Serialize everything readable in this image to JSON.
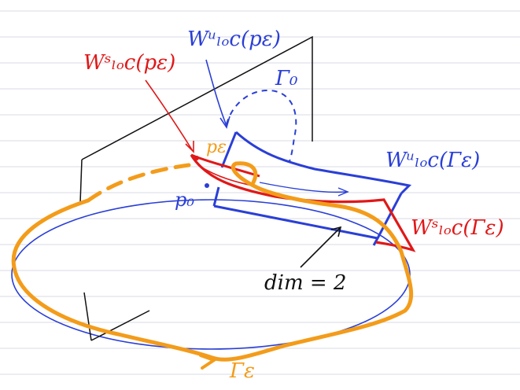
{
  "colors": {
    "paper": "#ffffff",
    "rule_line": "#d9dbe4",
    "blue": "#2a3fd6",
    "red": "#e01818",
    "orange": "#f39c1a",
    "ink": "#111111"
  },
  "labels": {
    "w_loc_s_p_eps": "Wˢₗₒc(pε)",
    "w_loc_u_p_eps": "Wᵘₗₒc(pε)",
    "gamma_0": "Γ₀",
    "p_eps": "pε",
    "p_0": "p₀",
    "w_loc_u_gamma_eps": "Wᵘₗₒc(Γε)",
    "w_loc_s_gamma_eps": "Wˢₗₒc(Γε)",
    "dim_eq_2": "dim = 2",
    "gamma_eps": "Γε"
  }
}
